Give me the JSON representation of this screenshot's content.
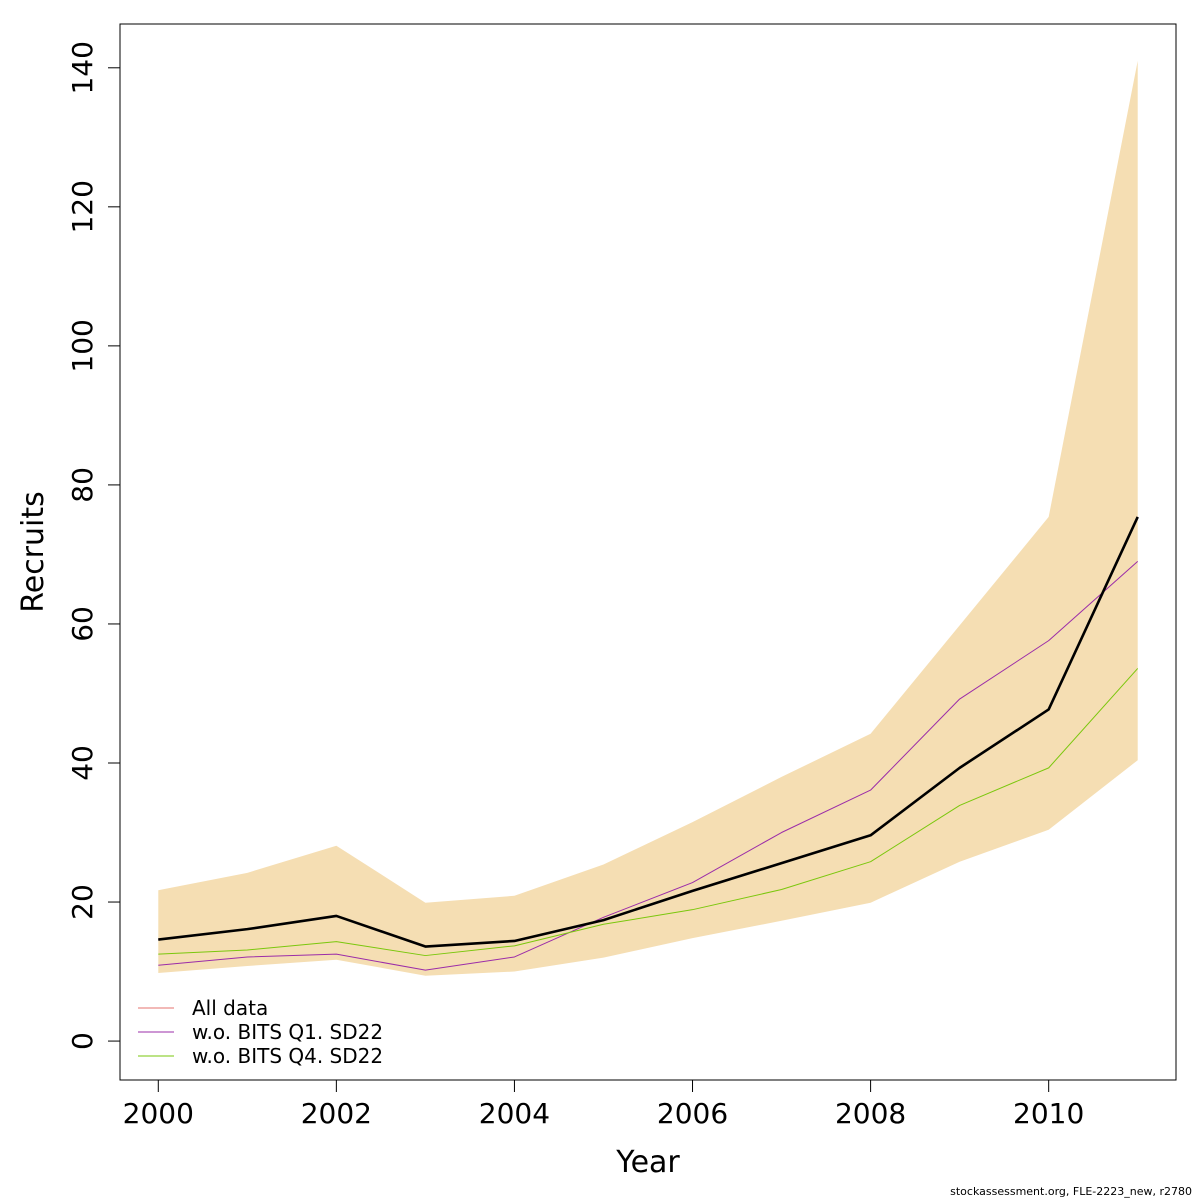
{
  "chart_data": {
    "type": "line",
    "title": "",
    "xlabel": "Year",
    "ylabel": "Recruits",
    "xlim": [
      1999.57,
      2011.43
    ],
    "ylim": [
      -5.6,
      146.3
    ],
    "xticks": [
      2000,
      2002,
      2004,
      2006,
      2008,
      2010
    ],
    "yticks": [
      0,
      20,
      40,
      60,
      80,
      100,
      120,
      140
    ],
    "x": [
      2000,
      2001,
      2002,
      2003,
      2004,
      2005,
      2006,
      2007,
      2008,
      2009,
      2010,
      2011
    ],
    "band": {
      "color": "#f5deb3",
      "lower": [
        9.8,
        10.8,
        11.7,
        9.4,
        10.0,
        12.0,
        14.8,
        17.3,
        19.9,
        25.8,
        30.4,
        40.4
      ],
      "upper": [
        21.7,
        24.2,
        28.1,
        19.9,
        20.9,
        25.4,
        31.5,
        38.0,
        44.2,
        59.8,
        75.4,
        141.0
      ]
    },
    "series": [
      {
        "name": "All data",
        "color": "#e6736f",
        "values": [
          14.6,
          16.1,
          18.0,
          13.6,
          14.4,
          17.4,
          21.6,
          25.6,
          29.6,
          39.3,
          47.7,
          75.4
        ]
      },
      {
        "name": "w.o. BITS Q1. SD22",
        "color": "#9b2ca8",
        "values": [
          10.9,
          12.1,
          12.5,
          10.2,
          12.1,
          17.8,
          22.8,
          30.0,
          36.1,
          49.2,
          57.6,
          69.0
        ]
      },
      {
        "name": "w.o. BITS Q4. SD22",
        "color": "#7ac70c",
        "values": [
          12.5,
          13.1,
          14.3,
          12.3,
          13.7,
          16.8,
          18.9,
          21.8,
          25.8,
          33.9,
          39.3,
          53.6
        ]
      },
      {
        "color": "#000000",
        "values": [
          14.6,
          16.1,
          18.0,
          13.6,
          14.4,
          17.4,
          21.6,
          25.6,
          29.6,
          39.3,
          47.7,
          75.4
        ]
      }
    ],
    "legend": "bottom-left",
    "grid": false
  },
  "footer": "stockassessment.org, FLE-2223_new, r2780"
}
